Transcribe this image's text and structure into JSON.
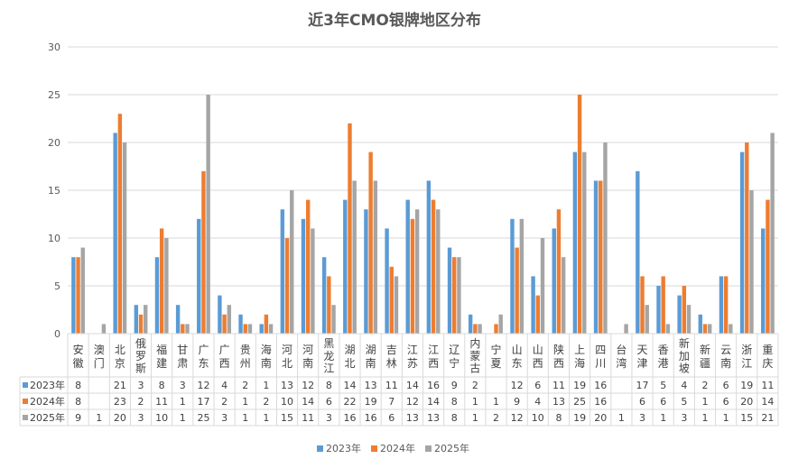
{
  "chart_data": {
    "type": "bar",
    "title": "近3年CMO银牌地区分布",
    "xlabel": "",
    "ylabel": "",
    "ylim": [
      0,
      30
    ],
    "yticks": [
      0,
      5,
      10,
      15,
      20,
      25,
      30
    ],
    "grid": true,
    "legend_position": "bottom",
    "data_table": true,
    "categories": [
      "安徽",
      "澳门",
      "北京",
      "俄罗斯",
      "福建",
      "甘肃",
      "广东",
      "广西",
      "贵州",
      "海南",
      "河北",
      "河南",
      "黑龙江",
      "湖北",
      "湖南",
      "吉林",
      "江苏",
      "江西",
      "辽宁",
      "内蒙古",
      "宁夏",
      "山东",
      "山西",
      "陕西",
      "上海",
      "四川",
      "台湾",
      "天津",
      "香港",
      "新加坡",
      "新疆",
      "云南",
      "浙江",
      "重庆"
    ],
    "series": [
      {
        "name": "2023年",
        "color": "#5B9BD5",
        "values": [
          8,
          null,
          21,
          3,
          8,
          3,
          12,
          4,
          2,
          1,
          13,
          12,
          8,
          14,
          13,
          11,
          14,
          16,
          9,
          2,
          null,
          12,
          6,
          11,
          19,
          16,
          null,
          17,
          5,
          4,
          2,
          6,
          19,
          11
        ]
      },
      {
        "name": "2024年",
        "color": "#ED7D31",
        "values": [
          8,
          null,
          23,
          2,
          11,
          1,
          17,
          2,
          1,
          2,
          10,
          14,
          6,
          22,
          19,
          7,
          12,
          14,
          8,
          1,
          1,
          9,
          4,
          13,
          25,
          16,
          null,
          6,
          6,
          5,
          1,
          6,
          20,
          14
        ]
      },
      {
        "name": "2025年",
        "color": "#A5A5A5",
        "values": [
          9,
          1,
          20,
          3,
          10,
          1,
          25,
          3,
          1,
          1,
          15,
          11,
          3,
          16,
          16,
          6,
          13,
          13,
          8,
          1,
          2,
          12,
          10,
          8,
          19,
          20,
          1,
          3,
          1,
          3,
          1,
          1,
          15,
          21
        ]
      }
    ]
  }
}
